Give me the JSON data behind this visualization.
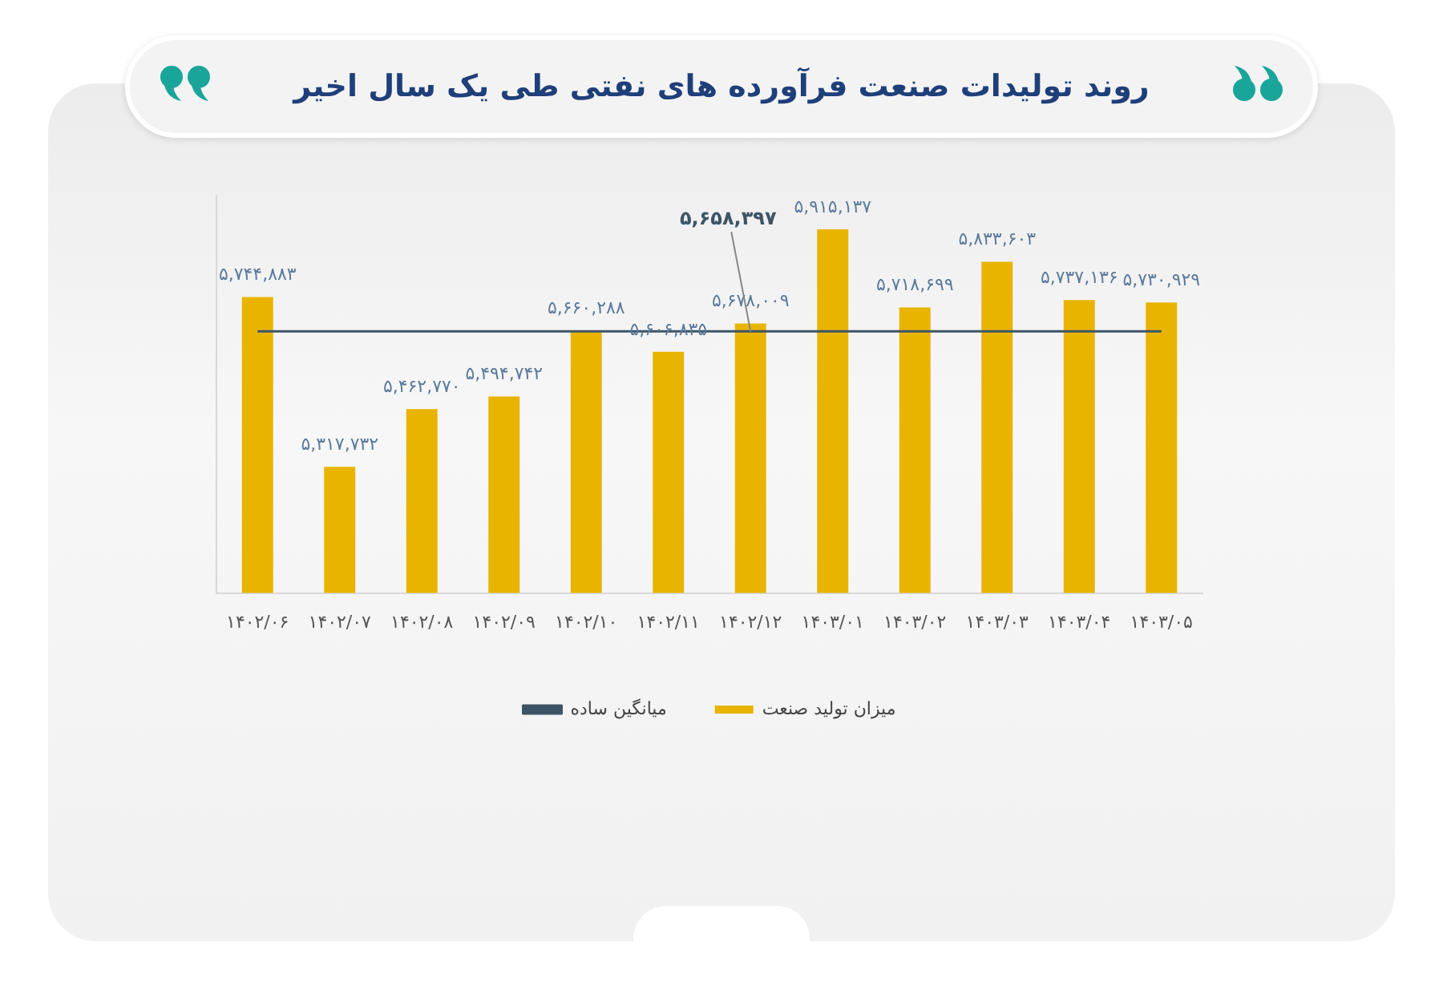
{
  "chart_data": {
    "type": "bar",
    "title": "روند تولیدات صنعت فرآورده های نفتی طی یک سال اخیر",
    "categories": [
      "۱۴۰۲/۰۶",
      "۱۴۰۲/۰۷",
      "۱۴۰۲/۰۸",
      "۱۴۰۲/۰۹",
      "۱۴۰۲/۱۰",
      "۱۴۰۲/۱۱",
      "۱۴۰۲/۱۲",
      "۱۴۰۳/۰۱",
      "۱۴۰۳/۰۲",
      "۱۴۰۳/۰۳",
      "۱۴۰۳/۰۴",
      "۱۴۰۳/۰۵"
    ],
    "series": [
      {
        "name": "میزان تولید صنعت",
        "color": "#e8b400",
        "values": [
          5744883,
          5317732,
          5462770,
          5494742,
          5660288,
          5606835,
          5678009,
          5915137,
          5718699,
          5833603,
          5737136,
          5730929
        ],
        "value_labels": [
          "۵,۷۴۴,۸۸۳",
          "۵,۳۱۷,۷۳۲",
          "۵,۴۶۲,۷۷۰",
          "۵,۴۹۴,۷۴۲",
          "۵,۶۶۰,۲۸۸",
          "۵,۶۰۶,۸۳۵",
          "۵,۶۷۸,۰۰۹",
          "۵,۹۱۵,۱۳۷",
          "۵,۷۱۸,۶۹۹",
          "۵,۸۳۳,۶۰۳",
          "۵,۷۳۷,۱۳۶",
          "۵,۷۳۰,۹۲۹"
        ]
      },
      {
        "name": "میانگین ساده",
        "type": "line",
        "color": "#3d5566",
        "values": [
          5658397,
          5658397,
          5658397,
          5658397,
          5658397,
          5658397,
          5658397,
          5658397,
          5658397,
          5658397,
          5658397,
          5658397
        ]
      }
    ],
    "annotations": [
      {
        "text": "۵,۶۵۸,۳۹۷",
        "x": "۱۴۰۲/۱۲",
        "y": 5658397
      }
    ],
    "ylim": [
      5000000,
      6000000
    ],
    "legend": "bottom",
    "grid": false,
    "marker": "none"
  }
}
